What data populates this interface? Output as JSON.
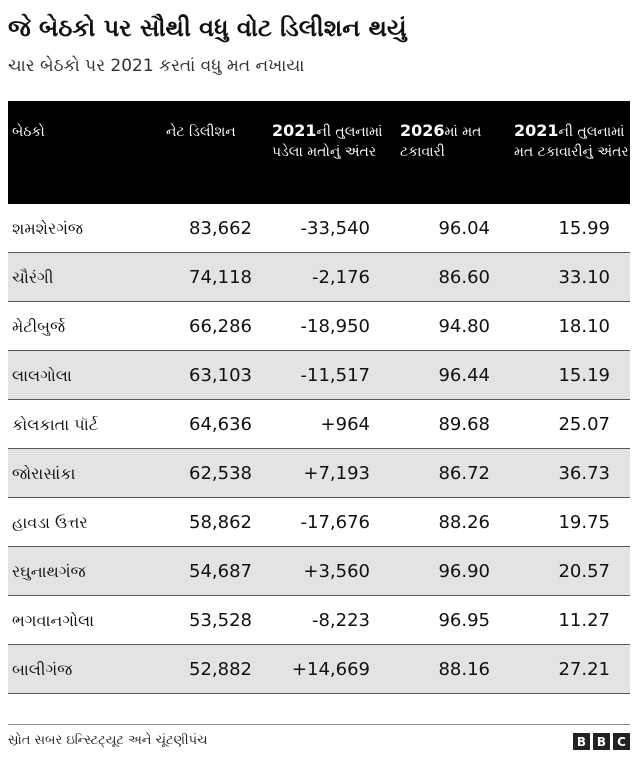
{
  "title": "જે બેઠકો પર સૌથી વધુ વોટ ડિલીશન થયું",
  "subtitle": "ચાર બેઠકો પર 2021 કરતાં વધુ મત નખાયા",
  "columns": [
    {
      "bold": "",
      "rest": "બેઠકો"
    },
    {
      "bold": "",
      "rest": "નેટ ડિલીશન"
    },
    {
      "bold": "2021",
      "rest": "ની તુલનામાં પડેલા મતોનું અંતર"
    },
    {
      "bold": "2026",
      "rest": "માં મત ટકાવારી"
    },
    {
      "bold": "2021",
      "rest": "ની તુલનામાં મત ટકાવારીનું અંતર"
    }
  ],
  "rows": [
    {
      "seat": "શમશેરગંજ",
      "net": "83,662",
      "diff": "-33,540",
      "pct": "96.04",
      "pctdiff": "15.99"
    },
    {
      "seat": "ચૌરંગી",
      "net": "74,118",
      "diff": "-2,176",
      "pct": "86.60",
      "pctdiff": "33.10"
    },
    {
      "seat": "મેટીબુર્જ",
      "net": "66,286",
      "diff": "-18,950",
      "pct": "94.80",
      "pctdiff": "18.10"
    },
    {
      "seat": "લાલગોલા",
      "net": "63,103",
      "diff": "-11,517",
      "pct": "96.44",
      "pctdiff": "15.19"
    },
    {
      "seat": "કોલકાતા પૉર્ટ",
      "net": "64,636",
      "diff": "+964",
      "pct": "89.68",
      "pctdiff": "25.07"
    },
    {
      "seat": "જોરાસાંકા",
      "net": "62,538",
      "diff": "+7,193",
      "pct": "86.72",
      "pctdiff": "36.73"
    },
    {
      "seat": "હાવડા ઉત્તર",
      "net": "58,862",
      "diff": "-17,676",
      "pct": "88.26",
      "pctdiff": "19.75"
    },
    {
      "seat": "રઘુનાથગંજ",
      "net": "54,687",
      "diff": "+3,560",
      "pct": "96.90",
      "pctdiff": "20.57"
    },
    {
      "seat": "ભગવાનગોલા",
      "net": "53,528",
      "diff": "-8,223",
      "pct": "96.95",
      "pctdiff": "11.27"
    },
    {
      "seat": "બાલીગંજ",
      "net": "52,882",
      "diff": "+14,669",
      "pct": "88.16",
      "pctdiff": "27.21"
    }
  ],
  "source": "સ્રોત સબર ઇન્સ્ટિટ્યૂટ અને ચૂંટણીપંચ",
  "logo": [
    "B",
    "B",
    "C"
  ]
}
